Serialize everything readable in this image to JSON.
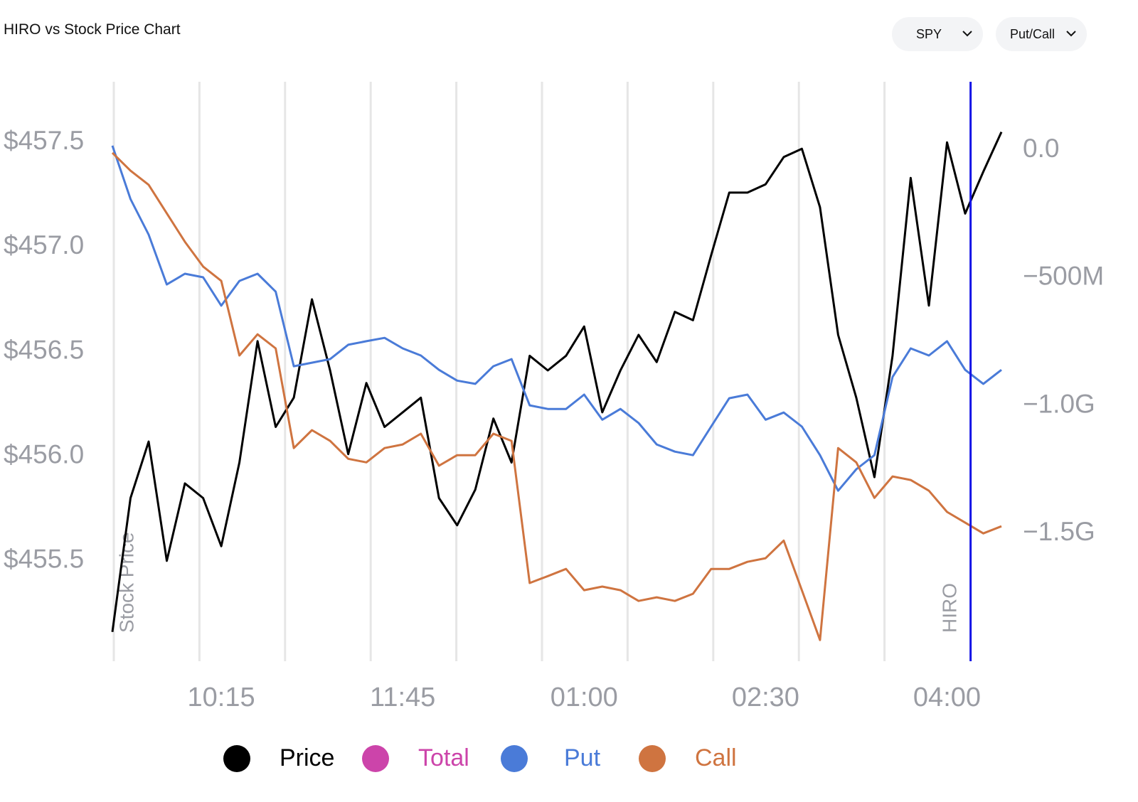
{
  "header": {
    "title": "HIRO vs Stock Price Chart",
    "controls": [
      {
        "label": "SPY"
      },
      {
        "label": "Put/Call"
      }
    ]
  },
  "chart_data": {
    "type": "line",
    "y_label": "Stock Price",
    "y2_label": "HIRO",
    "xlim": [
      0,
      49
    ],
    "xticks": [
      {
        "value": 6,
        "label": "10:15"
      },
      {
        "value": 16,
        "label": "11:45"
      },
      {
        "value": 26,
        "label": "01:00"
      },
      {
        "value": 36,
        "label": "02:30"
      },
      {
        "value": 46,
        "label": "04:00"
      }
    ],
    "ylim": [
      455.02,
      457.79
    ],
    "yticks": [
      {
        "value": 457.5,
        "label": "$457.5"
      },
      {
        "value": 457.0,
        "label": "$457.0"
      },
      {
        "value": 456.5,
        "label": "$456.5"
      },
      {
        "value": 456.0,
        "label": "$456.0"
      },
      {
        "value": 455.5,
        "label": "$455.5"
      }
    ],
    "y2lim": [
      -2000000000,
      267000000
    ],
    "y2ticks": [
      {
        "value": 0,
        "label": "0.0"
      },
      {
        "value": -500000000,
        "label": "−500M"
      },
      {
        "value": -1000000000,
        "label": "−1.0G"
      },
      {
        "value": -1500000000,
        "label": "−1.5G"
      }
    ],
    "grid": true,
    "marker": {
      "x": 47.3,
      "color": "#1414e6"
    },
    "series": [
      {
        "name": "Price",
        "color": "#000000",
        "axis": "y",
        "values": [
          455.16,
          455.8,
          456.07,
          455.5,
          455.87,
          455.8,
          455.57,
          455.97,
          456.55,
          456.14,
          456.28,
          456.75,
          456.41,
          456.01,
          456.35,
          456.14,
          456.21,
          456.28,
          455.8,
          455.67,
          455.84,
          456.18,
          455.97,
          456.48,
          456.41,
          456.48,
          456.62,
          456.21,
          456.41,
          456.58,
          456.45,
          456.69,
          456.65,
          456.96,
          457.26,
          457.26,
          457.3,
          457.43,
          457.47,
          457.19,
          456.58,
          456.28,
          455.9,
          456.48,
          457.33,
          456.72,
          457.5,
          457.16,
          457.36,
          457.55
        ]
      },
      {
        "name": "Total",
        "color": "#cc44aa",
        "axis": "y2",
        "values": [
          null,
          null,
          null,
          null,
          null,
          null,
          null,
          null,
          null,
          null,
          null,
          null,
          null,
          null,
          null,
          null,
          null,
          null,
          null,
          null,
          null,
          null,
          null,
          null,
          null,
          null,
          null,
          null,
          null,
          null,
          null,
          null,
          null,
          null,
          null,
          null,
          null,
          null,
          null,
          null,
          null,
          null,
          null,
          null,
          null,
          null,
          null,
          null,
          null,
          null
        ]
      },
      {
        "name": "Put",
        "color": "#4a7bd8",
        "axis": "y2",
        "values": [
          17000000,
          -192000000,
          -331000000,
          -526000000,
          -484000000,
          -498000000,
          -609000000,
          -512000000,
          -484000000,
          -554000000,
          -846000000,
          -832000000,
          -818000000,
          -762000000,
          -748000000,
          -735000000,
          -776000000,
          -804000000,
          -860000000,
          -902000000,
          -915000000,
          -846000000,
          -818000000,
          -999000000,
          -1013000000,
          -1013000000,
          -957000000,
          -1055000000,
          -1013000000,
          -1068000000,
          -1152000000,
          -1180000000,
          -1194000000,
          -1082000000,
          -971000000,
          -957000000,
          -1055000000,
          -1027000000,
          -1082000000,
          -1194000000,
          -1333000000,
          -1249000000,
          -1194000000,
          -888000000,
          -776000000,
          -804000000,
          -748000000,
          -860000000,
          -915000000,
          -860000000
        ]
      },
      {
        "name": "Call",
        "color": "#cf7440",
        "axis": "y2",
        "values": [
          -11000000,
          -81000000,
          -136000000,
          -248000000,
          -359000000,
          -456000000,
          -512000000,
          -804000000,
          -721000000,
          -776000000,
          -1166000000,
          -1096000000,
          -1138000000,
          -1208000000,
          -1222000000,
          -1166000000,
          -1152000000,
          -1110000000,
          -1235000000,
          -1194000000,
          -1194000000,
          -1110000000,
          -1138000000,
          -1694000000,
          -1667000000,
          -1639000000,
          -1722000000,
          -1708000000,
          -1722000000,
          -1764000000,
          -1750000000,
          -1764000000,
          -1736000000,
          -1639000000,
          -1639000000,
          -1611000000,
          -1597000000,
          -1528000000,
          -1722000000,
          -1917000000,
          -1166000000,
          -1222000000,
          -1361000000,
          -1277000000,
          -1291000000,
          -1333000000,
          -1416000000,
          -1458000000,
          -1500000000,
          -1472000000
        ]
      }
    ]
  }
}
